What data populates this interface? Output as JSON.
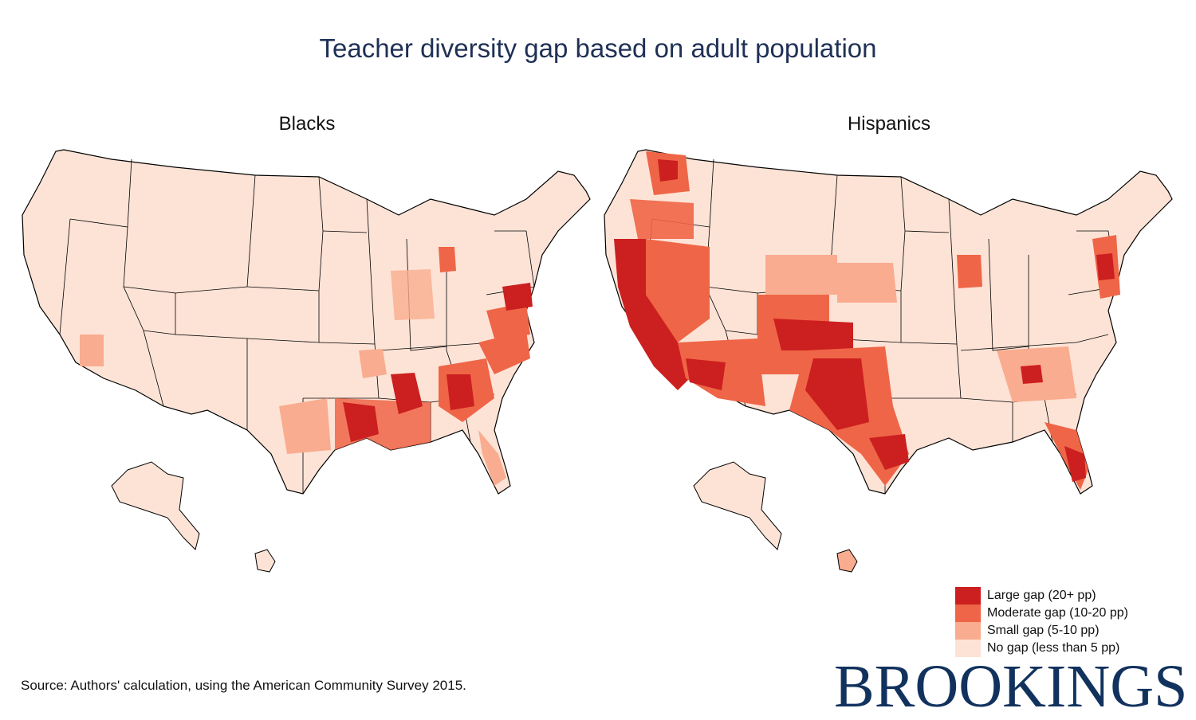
{
  "title": "Teacher diversity gap based on adult population",
  "panels": [
    {
      "title": "Blacks"
    },
    {
      "title": "Hispanics"
    }
  ],
  "legend": [
    {
      "label": "Large gap (20+ pp)",
      "color": "#cc1f1f"
    },
    {
      "label": "Moderate gap (10-20 pp)",
      "color": "#ef6547"
    },
    {
      "label": "Small gap (5-10 pp)",
      "color": "#f9ac8f"
    },
    {
      "label": "No gap (less than 5 pp)",
      "color": "#fde3d6"
    }
  ],
  "source": "Source: Authors' calculation, using the American Community Survey 2015.",
  "logo": "BROOKINGS",
  "colors": {
    "title": "#1f3055",
    "logo": "#12325e",
    "outline": "#000000"
  }
}
